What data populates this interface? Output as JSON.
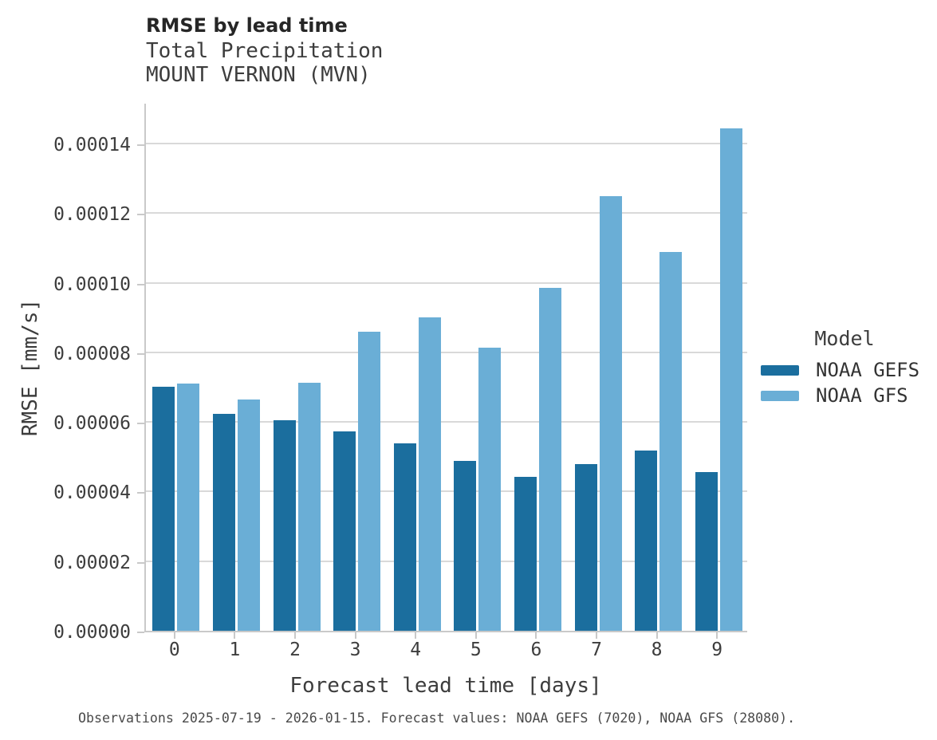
{
  "figure": {
    "title": "RMSE by lead time",
    "subtitle": [
      "Total Precipitation",
      "MOUNT VERNON (MVN)"
    ],
    "caption": "Observations 2025-07-19 - 2026-01-15. Forecast values: NOAA GEFS (7020), NOAA GFS (28080)."
  },
  "chart_data": {
    "type": "bar",
    "title": "RMSE by lead time",
    "subtitle": "Total Precipitation / MOUNT VERNON (MVN)",
    "categories": [
      "0",
      "1",
      "2",
      "3",
      "4",
      "5",
      "6",
      "7",
      "8",
      "9"
    ],
    "series": [
      {
        "name": "NOAA GEFS",
        "color": "#1b6e9e",
        "values": [
          7e-05,
          6.23e-05,
          6.05e-05,
          5.72e-05,
          5.38e-05,
          4.87e-05,
          4.43e-05,
          4.79e-05,
          5.18e-05,
          4.56e-05
        ]
      },
      {
        "name": "NOAA GFS",
        "color": "#6aaed6",
        "values": [
          7.1e-05,
          6.64e-05,
          7.13e-05,
          8.6e-05,
          9e-05,
          8.13e-05,
          9.85e-05,
          0.0001248,
          0.0001089,
          0.0001444
        ]
      }
    ],
    "xlabel": "Forecast lead time [days]",
    "ylabel": "RMSE [mm/s]",
    "ylim": [
      0,
      0.0001519
    ],
    "yticks": [
      0,
      2e-05,
      4e-05,
      6e-05,
      8e-05,
      0.0001,
      0.00012,
      0.00014
    ],
    "ytick_labels": [
      "0.00000",
      "0.00002",
      "0.00004",
      "0.00006",
      "0.00008",
      "0.00010",
      "0.00012",
      "0.00014"
    ],
    "grid": true,
    "legend": {
      "title": "Model",
      "position": "right"
    }
  },
  "colors": {
    "background": "#ffffff",
    "grid": "#d9d9d9",
    "spine": "#c9c9c9",
    "tick": "#c9c9c9",
    "title_text": "#262626",
    "axis_text": "#3d3d3d",
    "legend_text": "#333333",
    "caption_text": "#4a4a4a"
  }
}
